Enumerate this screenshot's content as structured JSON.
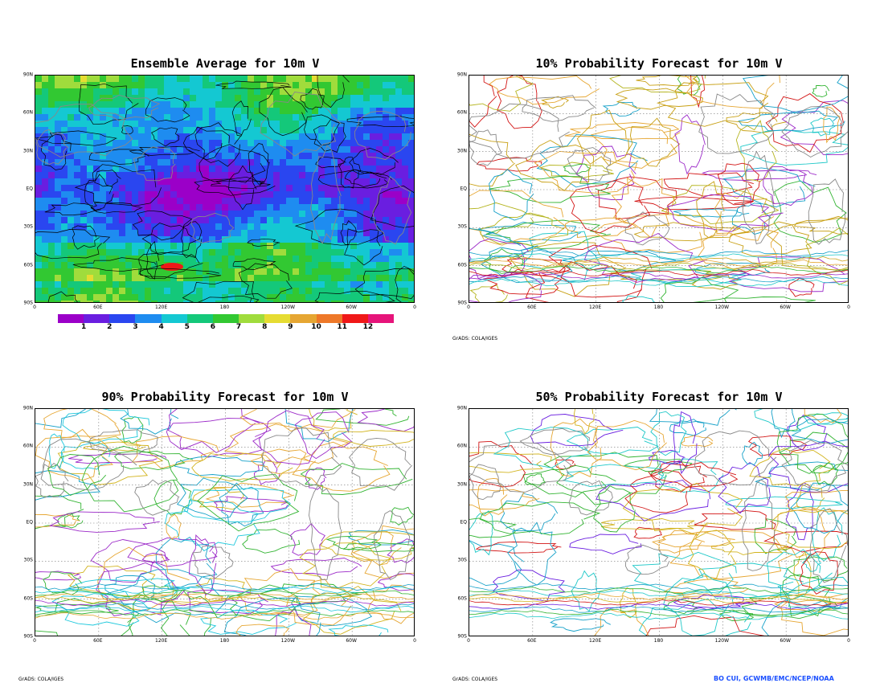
{
  "panels": {
    "top_left": {
      "title": "Ensemble Average for 10m V"
    },
    "top_right": {
      "title": "10% Probability Forecast for 10m V"
    },
    "bottom_left": {
      "title": "90% Probability Forecast for 10m V"
    },
    "bottom_right": {
      "title": "50% Probability Forecast for 10m V"
    }
  },
  "axes": {
    "lat_labels": [
      "90N",
      "60N",
      "30N",
      "EQ",
      "30S",
      "60S",
      "90S"
    ],
    "lon_labels": [
      "0",
      "60E",
      "120E",
      "180",
      "120W",
      "60W",
      "0"
    ]
  },
  "colorbar": {
    "labels": [
      "1",
      "2",
      "3",
      "4",
      "5",
      "6",
      "7",
      "8",
      "9",
      "10",
      "11",
      "12"
    ],
    "colors": [
      "#9b00c8",
      "#6a1ee0",
      "#2a46f0",
      "#1e8cf0",
      "#14c8d2",
      "#14c87a",
      "#32c832",
      "#a0dc3c",
      "#e6dc32",
      "#e6a632",
      "#ee7828",
      "#f01818",
      "#e6147a"
    ]
  },
  "credits": {
    "grads_top_right": "GrADS: COLA/IGES",
    "grads_bottom_left": "GrADS: COLA/IGES",
    "grads_bottom_right": "GrADS: COLA/IGES",
    "author": "BO CUI, GCWMB/EMC/NCEP/NOAA"
  }
}
